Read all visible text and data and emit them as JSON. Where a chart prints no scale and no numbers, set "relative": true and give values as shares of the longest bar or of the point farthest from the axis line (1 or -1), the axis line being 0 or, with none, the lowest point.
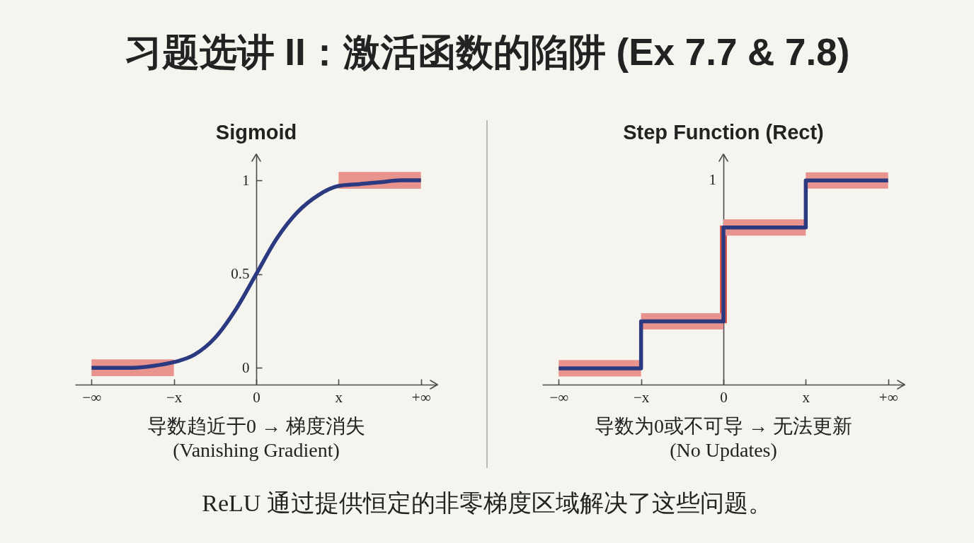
{
  "chart_data": [
    {
      "type": "other",
      "title": "习题选讲 II：激活函数的陷阱 (Ex 7.7 & 7.8)",
      "annotations": [
        "ReLU 通过提供恒定的非零梯度区域解决了这些问题。"
      ]
    },
    {
      "type": "line",
      "title": "Sigmoid",
      "annotations": [
        "导数趋近于0 → 梯度消失",
        "(Vanishing Gradient)"
      ],
      "categories": [
        "−∞",
        null,
        null,
        null,
        "−x",
        null,
        null,
        null,
        "0",
        null,
        null,
        null,
        "x",
        null,
        null,
        null,
        "+∞"
      ],
      "ylim": [
        -0.09,
        1.14
      ],
      "yticks": [
        0,
        0.5,
        1
      ],
      "series": [
        {
          "color": "#2b3a80",
          "values": [
            0,
            0,
            0,
            0.01,
            0.03,
            0.07,
            0.16,
            0.31,
            0.5,
            0.69,
            0.83,
            0.92,
            0.97,
            0.98,
            0.99,
            1,
            1
          ],
          "lower": [
            -0.045,
            -0.045,
            -0.045,
            -0.045,
            -0.045,
            null,
            null,
            null,
            null,
            null,
            null,
            null,
            0.955,
            0.955,
            0.955,
            0.955,
            0.955
          ],
          "upper": [
            0.045,
            0.045,
            0.045,
            0.045,
            0.045,
            null,
            null,
            null,
            null,
            null,
            null,
            null,
            1.045,
            1.045,
            1.045,
            1.045,
            1.045
          ]
        }
      ]
    },
    {
      "type": "step",
      "title": "Step Function (Rect)",
      "relative": true,
      "annotations": [
        "1",
        "导数为0或不可导 → 无法更新",
        "(No Updates)"
      ],
      "categories": [
        "−∞",
        "−x",
        "0",
        "x",
        "+∞"
      ],
      "series": [
        {
          "color": "#2b3a80",
          "values": [
            0.08,
            0.31,
            0.77,
            1,
            1
          ],
          "lower": [
            0.04,
            0.27,
            0.73,
            0.96,
            0.96
          ],
          "upper": [
            0.12,
            0.35,
            0.81,
            1.04,
            1.04
          ]
        }
      ]
    }
  ]
}
